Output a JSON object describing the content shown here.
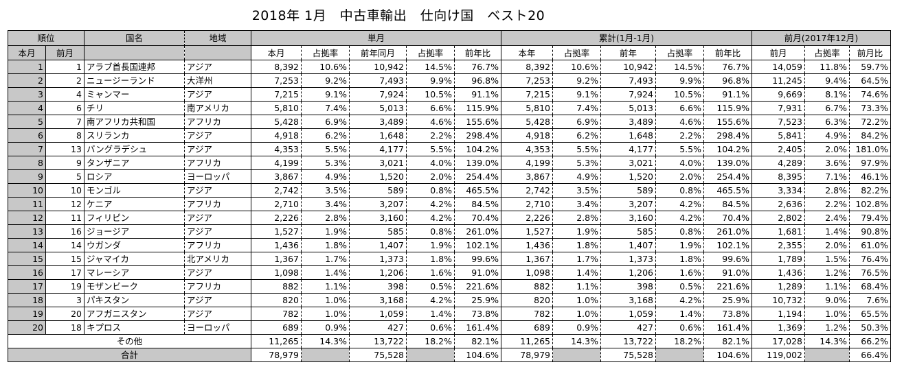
{
  "title": "2018年 1月　中古車輸出　仕向け国　ベスト20",
  "headers": {
    "rank": "順位",
    "rank_this": "本月",
    "rank_prev": "前月",
    "country": "国名",
    "region": "地域",
    "single_month": "単月",
    "cumulative": "累計(1月-1月)",
    "prev_month": "前月(2017年12月)",
    "sm_cols": [
      "本月",
      "占拠率",
      "前年同月",
      "占拠率",
      "前年比"
    ],
    "cu_cols": [
      "本年",
      "占拠率",
      "前年",
      "占拠率",
      "前年比"
    ],
    "pm_cols": [
      "前月",
      "占拠率",
      "前月比"
    ]
  },
  "rows": [
    {
      "rank": "1",
      "prev": "1",
      "country": "アラブ首長国連邦",
      "region": "アジア",
      "v": [
        "8,392",
        "10.6%",
        "10,942",
        "14.5%",
        "76.7%",
        "8,392",
        "10.6%",
        "10,942",
        "14.5%",
        "76.7%",
        "14,059",
        "11.8%",
        "59.7%"
      ]
    },
    {
      "rank": "2",
      "prev": "2",
      "country": "ニュージーランド",
      "region": "大洋州",
      "v": [
        "7,253",
        "9.2%",
        "7,493",
        "9.9%",
        "96.8%",
        "7,253",
        "9.2%",
        "7,493",
        "9.9%",
        "96.8%",
        "11,245",
        "9.4%",
        "64.5%"
      ]
    },
    {
      "rank": "3",
      "prev": "4",
      "country": "ミャンマー",
      "region": "アジア",
      "v": [
        "7,215",
        "9.1%",
        "7,924",
        "10.5%",
        "91.1%",
        "7,215",
        "9.1%",
        "7,924",
        "10.5%",
        "91.1%",
        "9,669",
        "8.1%",
        "74.6%"
      ]
    },
    {
      "rank": "4",
      "prev": "6",
      "country": "チリ",
      "region": "南アメリカ",
      "v": [
        "5,810",
        "7.4%",
        "5,013",
        "6.6%",
        "115.9%",
        "5,810",
        "7.4%",
        "5,013",
        "6.6%",
        "115.9%",
        "7,931",
        "6.7%",
        "73.3%"
      ]
    },
    {
      "rank": "5",
      "prev": "7",
      "country": "南アフリカ共和国",
      "region": "アフリカ",
      "v": [
        "5,428",
        "6.9%",
        "3,489",
        "4.6%",
        "155.6%",
        "5,428",
        "6.9%",
        "3,489",
        "4.6%",
        "155.6%",
        "7,523",
        "6.3%",
        "72.2%"
      ]
    },
    {
      "rank": "6",
      "prev": "8",
      "country": "スリランカ",
      "region": "アジア",
      "v": [
        "4,918",
        "6.2%",
        "1,648",
        "2.2%",
        "298.4%",
        "4,918",
        "6.2%",
        "1,648",
        "2.2%",
        "298.4%",
        "5,841",
        "4.9%",
        "84.2%"
      ]
    },
    {
      "rank": "7",
      "prev": "13",
      "country": "バングラデシュ",
      "region": "アジア",
      "v": [
        "4,353",
        "5.5%",
        "4,177",
        "5.5%",
        "104.2%",
        "4,353",
        "5.5%",
        "4,177",
        "5.5%",
        "104.2%",
        "2,405",
        "2.0%",
        "181.0%"
      ]
    },
    {
      "rank": "8",
      "prev": "9",
      "country": "タンザニア",
      "region": "アフリカ",
      "v": [
        "4,199",
        "5.3%",
        "3,021",
        "4.0%",
        "139.0%",
        "4,199",
        "5.3%",
        "3,021",
        "4.0%",
        "139.0%",
        "4,289",
        "3.6%",
        "97.9%"
      ]
    },
    {
      "rank": "9",
      "prev": "5",
      "country": "ロシア",
      "region": "ヨーロッパ",
      "v": [
        "3,867",
        "4.9%",
        "1,520",
        "2.0%",
        "254.4%",
        "3,867",
        "4.9%",
        "1,520",
        "2.0%",
        "254.4%",
        "8,395",
        "7.1%",
        "46.1%"
      ]
    },
    {
      "rank": "10",
      "prev": "10",
      "country": "モンゴル",
      "region": "アジア",
      "v": [
        "2,742",
        "3.5%",
        "589",
        "0.8%",
        "465.5%",
        "2,742",
        "3.5%",
        "589",
        "0.8%",
        "465.5%",
        "3,334",
        "2.8%",
        "82.2%"
      ]
    },
    {
      "rank": "11",
      "prev": "12",
      "country": "ケニア",
      "region": "アフリカ",
      "v": [
        "2,710",
        "3.4%",
        "3,207",
        "4.2%",
        "84.5%",
        "2,710",
        "3.4%",
        "3,207",
        "4.2%",
        "84.5%",
        "2,636",
        "2.2%",
        "102.8%"
      ]
    },
    {
      "rank": "12",
      "prev": "11",
      "country": "フィリピン",
      "region": "アジア",
      "v": [
        "2,226",
        "2.8%",
        "3,160",
        "4.2%",
        "70.4%",
        "2,226",
        "2.8%",
        "3,160",
        "4.2%",
        "70.4%",
        "2,802",
        "2.4%",
        "79.4%"
      ]
    },
    {
      "rank": "13",
      "prev": "16",
      "country": "ジョージア",
      "region": "アジア",
      "v": [
        "1,527",
        "1.9%",
        "585",
        "0.8%",
        "261.0%",
        "1,527",
        "1.9%",
        "585",
        "0.8%",
        "261.0%",
        "1,681",
        "1.4%",
        "90.8%"
      ]
    },
    {
      "rank": "14",
      "prev": "14",
      "country": "ウガンダ",
      "region": "アフリカ",
      "v": [
        "1,436",
        "1.8%",
        "1,407",
        "1.9%",
        "102.1%",
        "1,436",
        "1.8%",
        "1,407",
        "1.9%",
        "102.1%",
        "2,355",
        "2.0%",
        "61.0%"
      ]
    },
    {
      "rank": "15",
      "prev": "15",
      "country": "ジャマイカ",
      "region": "北アメリカ",
      "v": [
        "1,367",
        "1.7%",
        "1,373",
        "1.8%",
        "99.6%",
        "1,367",
        "1.7%",
        "1,373",
        "1.8%",
        "99.6%",
        "1,789",
        "1.5%",
        "76.4%"
      ]
    },
    {
      "rank": "16",
      "prev": "17",
      "country": "マレーシア",
      "region": "アジア",
      "v": [
        "1,098",
        "1.4%",
        "1,206",
        "1.6%",
        "91.0%",
        "1,098",
        "1.4%",
        "1,206",
        "1.6%",
        "91.0%",
        "1,436",
        "1.2%",
        "76.5%"
      ]
    },
    {
      "rank": "17",
      "prev": "19",
      "country": "モザンビーク",
      "region": "アフリカ",
      "v": [
        "882",
        "1.1%",
        "398",
        "0.5%",
        "221.6%",
        "882",
        "1.1%",
        "398",
        "0.5%",
        "221.6%",
        "1,289",
        "1.1%",
        "68.4%"
      ]
    },
    {
      "rank": "18",
      "prev": "3",
      "country": "パキスタン",
      "region": "アジア",
      "v": [
        "820",
        "1.0%",
        "3,168",
        "4.2%",
        "25.9%",
        "820",
        "1.0%",
        "3,168",
        "4.2%",
        "25.9%",
        "10,732",
        "9.0%",
        "7.6%"
      ]
    },
    {
      "rank": "19",
      "prev": "20",
      "country": "アフガニスタン",
      "region": "アジア",
      "v": [
        "782",
        "1.0%",
        "1,059",
        "1.4%",
        "73.8%",
        "782",
        "1.0%",
        "1,059",
        "1.4%",
        "73.8%",
        "1,194",
        "1.0%",
        "65.5%"
      ]
    },
    {
      "rank": "20",
      "prev": "18",
      "country": "キプロス",
      "region": "ヨーロッパ",
      "v": [
        "689",
        "0.9%",
        "427",
        "0.6%",
        "161.4%",
        "689",
        "0.9%",
        "427",
        "0.6%",
        "161.4%",
        "1,369",
        "1.2%",
        "50.3%"
      ]
    }
  ],
  "others": {
    "label": "その他",
    "v": [
      "11,265",
      "14.3%",
      "13,722",
      "18.2%",
      "82.1%",
      "11,265",
      "14.3%",
      "13,722",
      "18.2%",
      "82.1%",
      "17,028",
      "14.3%",
      "66.2%"
    ]
  },
  "total": {
    "label": "合計",
    "v": [
      "78,979",
      "",
      "75,528",
      "",
      "104.6%",
      "78,979",
      "",
      "75,528",
      "",
      "104.6%",
      "119,002",
      "",
      "66.4%"
    ]
  }
}
